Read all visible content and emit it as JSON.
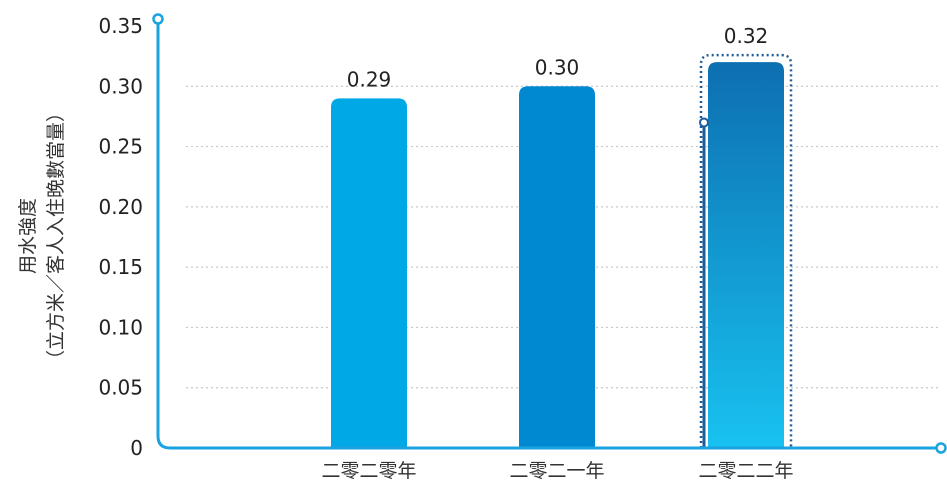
{
  "chart_data": {
    "type": "bar",
    "title": "",
    "xlabel": "",
    "ylabel_line1": "用水強度",
    "ylabel_line2": "（立方米／客人入住晚數當量）",
    "categories": [
      "二零二零年",
      "二零二一年",
      "二零二二年"
    ],
    "values": [
      0.29,
      0.3,
      0.32
    ],
    "value_labels": [
      "0.29",
      "0.30",
      "0.32"
    ],
    "ylim": [
      0,
      0.35
    ],
    "yticks": [
      0,
      0.05,
      0.1,
      0.15,
      0.2,
      0.25,
      0.3,
      0.35
    ],
    "ytick_labels": [
      "0",
      "0.05",
      "0.10",
      "0.15",
      "0.20",
      "0.25",
      "0.30",
      "0.35"
    ],
    "grid": true,
    "legend": "none",
    "highlighted_category": "二零二二年",
    "colors": {
      "axis": "#1aa3e0",
      "grid": "#c8c8c8",
      "bar_2020": "#00a9e6",
      "bar_2021": "#0088d1",
      "bar_2022_top": "#0d6fb0",
      "bar_2022_bottom": "#18c2f0",
      "highlight_outline": "#1c5c99"
    }
  }
}
